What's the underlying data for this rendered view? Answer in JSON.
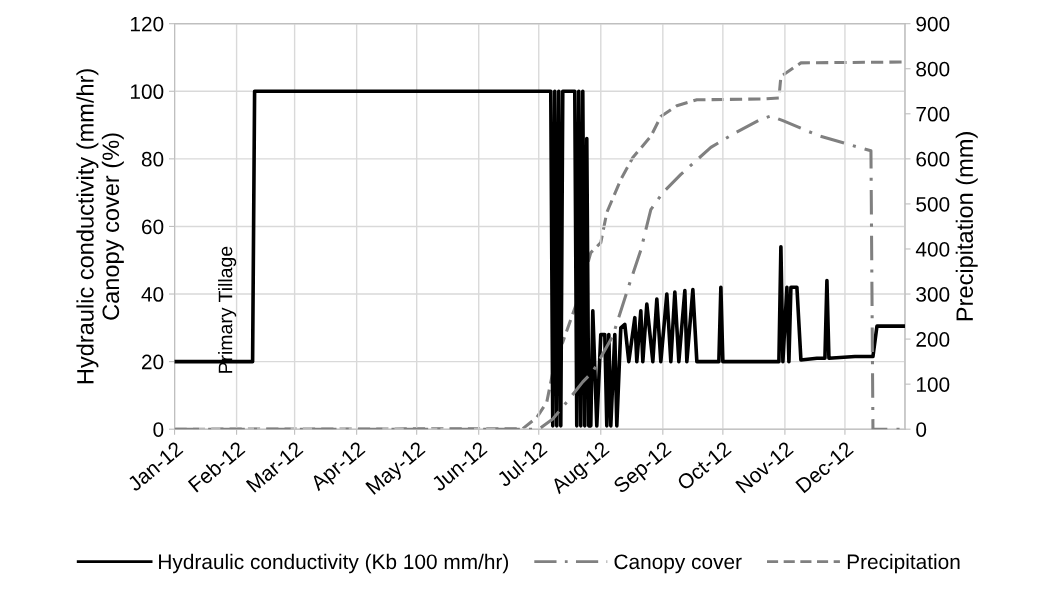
{
  "chart_data": {
    "type": "line",
    "ylabel": "Hydraulic conductivity (mm/hr)\nCanopy cover (%)",
    "y2label": "Precipitation (mm)",
    "xlim": [
      "2012-01-01",
      "2012-12-31"
    ],
    "xticks": [
      {
        "value": "2012-01-01",
        "label": "Jan-12"
      },
      {
        "value": "2012-02-01",
        "label": "Feb-12"
      },
      {
        "value": "2012-03-01",
        "label": "Mar-12"
      },
      {
        "value": "2012-04-01",
        "label": "Apr-12"
      },
      {
        "value": "2012-05-01",
        "label": "May-12"
      },
      {
        "value": "2012-06-01",
        "label": "Jun-12"
      },
      {
        "value": "2012-07-01",
        "label": "Jul-12"
      },
      {
        "value": "2012-08-01",
        "label": "Aug-12"
      },
      {
        "value": "2012-09-01",
        "label": "Sep-12"
      },
      {
        "value": "2012-10-01",
        "label": "Oct-12"
      },
      {
        "value": "2012-11-01",
        "label": "Nov-12"
      },
      {
        "value": "2012-12-01",
        "label": "Dec-12"
      }
    ],
    "ylim": [
      0,
      120
    ],
    "yticks": [
      0,
      20,
      40,
      60,
      80,
      100,
      120
    ],
    "y2lim": [
      0,
      900
    ],
    "y2ticks": [
      0,
      100,
      200,
      300,
      400,
      500,
      600,
      700,
      800,
      900
    ],
    "grid": true,
    "legend": "bottom",
    "marker": "none",
    "annotations": [
      "Primary Tillage"
    ],
    "series": [
      {
        "name": "Hydraulic conductivity (Kb 100 mm/hr)",
        "color": "#000000",
        "line_style": "solid",
        "x": [
          "2012-01-01",
          "2012-02-09",
          "2012-02-10",
          "2012-07-07",
          "2012-07-08",
          "2012-07-09",
          "2012-07-10",
          "2012-07-11",
          "2012-07-12",
          "2012-07-13",
          "2012-07-19",
          "2012-07-20",
          "2012-07-21",
          "2012-07-22",
          "2012-07-23",
          "2012-07-24",
          "2012-07-25",
          "2012-07-26",
          "2012-07-27",
          "2012-07-28",
          "2012-07-30",
          "2012-08-01",
          "2012-08-03",
          "2012-08-04",
          "2012-08-05",
          "2012-08-06",
          "2012-08-08",
          "2012-08-09",
          "2012-08-11",
          "2012-08-13",
          "2012-08-15",
          "2012-08-18",
          "2012-08-19",
          "2012-08-21",
          "2012-08-22",
          "2012-08-24",
          "2012-08-27",
          "2012-08-29",
          "2012-08-31",
          "2012-09-03",
          "2012-09-05",
          "2012-09-07",
          "2012-09-09",
          "2012-09-12",
          "2012-09-13",
          "2012-09-16",
          "2012-09-18",
          "2012-09-29",
          "2012-09-30",
          "2012-10-01",
          "2012-10-29",
          "2012-10-30",
          "2012-10-31",
          "2012-11-02",
          "2012-11-03",
          "2012-11-04",
          "2012-11-07",
          "2012-11-09",
          "2012-11-17",
          "2012-11-21",
          "2012-11-22",
          "2012-11-23",
          "2012-12-06",
          "2012-12-15",
          "2012-12-17",
          "2012-12-31"
        ],
        "values": [
          20,
          20,
          100,
          100,
          1,
          100,
          1,
          100,
          1,
          100,
          100,
          1,
          100,
          1,
          100,
          1,
          86,
          1,
          1,
          35,
          1,
          28,
          28,
          1,
          28,
          1,
          28,
          1,
          30,
          31,
          20,
          33,
          20,
          35,
          20,
          37,
          20,
          38.5,
          20,
          40,
          20,
          40.6,
          20,
          41,
          20,
          41.3,
          20,
          20,
          42,
          20,
          20,
          54,
          20,
          42,
          20,
          42,
          42,
          20.5,
          21,
          21,
          44,
          21,
          21.5,
          21.5,
          30.5,
          30.5
        ]
      },
      {
        "name": "Canopy cover",
        "color": "#808080",
        "line_style": "dashdot",
        "x": [
          "2012-01-01",
          "2012-07-01",
          "2012-07-08",
          "2012-07-17",
          "2012-07-23",
          "2012-07-28",
          "2012-08-07",
          "2012-08-15",
          "2012-08-21",
          "2012-08-26",
          "2012-09-01",
          "2012-09-10",
          "2012-09-25",
          "2012-10-06",
          "2012-10-20",
          "2012-10-25",
          "2012-10-31",
          "2012-11-18",
          "2012-12-08",
          "2012-12-14",
          "2012-12-15",
          "2012-12-31"
        ],
        "values": [
          0,
          0,
          3,
          9.5,
          14,
          17,
          27.6,
          42.4,
          53,
          65,
          70,
          75.4,
          83.4,
          87.3,
          91.7,
          92.7,
          91.3,
          86.8,
          83.4,
          82.4,
          0,
          0
        ]
      },
      {
        "name": "Precipitation",
        "color": "#808080",
        "line_style": "dashed",
        "axis": "y2",
        "x": [
          "2012-01-01",
          "2012-06-23",
          "2012-06-30",
          "2012-07-05",
          "2012-07-10",
          "2012-07-13",
          "2012-07-20",
          "2012-07-27",
          "2012-08-01",
          "2012-08-04",
          "2012-08-11",
          "2012-08-17",
          "2012-08-26",
          "2012-08-31",
          "2012-09-08",
          "2012-09-18",
          "2012-10-21",
          "2012-10-29",
          "2012-10-30",
          "2012-11-09",
          "2012-12-31"
        ],
        "values": [
          0,
          1,
          26,
          60,
          170,
          193,
          281,
          392,
          414,
          481,
          554,
          603,
          650,
          694,
          718,
          731,
          733,
          735,
          783,
          813,
          815
        ]
      }
    ]
  }
}
